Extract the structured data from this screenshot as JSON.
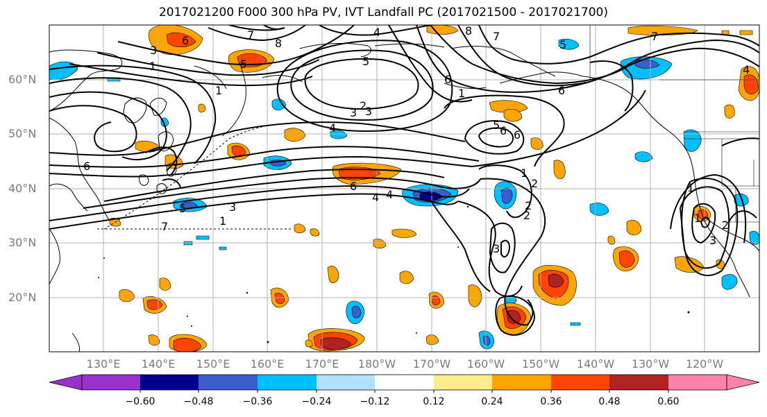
{
  "title": "2017021200 F000 300 hPa PV, IVT Landfall PC (2017021500 - 2017021700)",
  "lat_labels": [
    "60°N",
    "50°N",
    "40°N",
    "30°N",
    "20°N"
  ],
  "lon_labels": [
    "130°E",
    "140°E",
    "150°E",
    "160°E",
    "170°E",
    "180°W",
    "170°W",
    "160°W",
    "150°W",
    "140°W",
    "130°W",
    "120°W"
  ],
  "colorbar": {
    "colors": [
      "#9932cc",
      "#00008b",
      "#3a5fcd",
      "#00bfff",
      "#b0e2ff",
      "#ffffff",
      "#ffec8b",
      "#ffa500",
      "#ff4500",
      "#b22222",
      "#ff82ab"
    ],
    "ticks": [
      "−0.60",
      "−0.48",
      "−0.36",
      "−0.24",
      "−0.12",
      "0.12",
      "0.24",
      "0.36",
      "0.48",
      "0.60"
    ]
  },
  "contour_labels": [
    "6",
    "7",
    "8",
    "5",
    "7",
    "4",
    "8",
    "7",
    "6",
    "5",
    "4",
    "1",
    "3",
    "1",
    "6",
    "2",
    "3",
    "4",
    "5",
    "6",
    "5",
    "6",
    "2",
    "1",
    "6",
    "4",
    "1",
    "3",
    "5",
    "1",
    "2",
    "3",
    "7",
    "6",
    "4",
    "3",
    "2",
    "1",
    "1",
    "2",
    "3"
  ]
}
